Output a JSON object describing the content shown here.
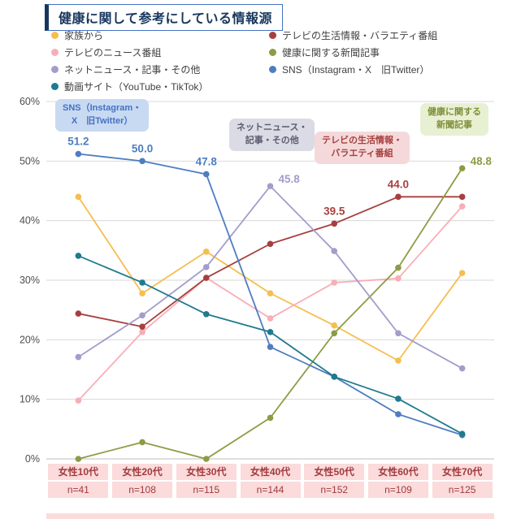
{
  "title": "健康に関して参考にしている情報源",
  "colors": {
    "title_text": "#17375E",
    "title_border": "#4472C4",
    "category_label_bg": "#FBDBDB",
    "category_label_text": "#A23B3E",
    "gridline": "#D9D9D9"
  },
  "legend": {
    "left": [
      "家族から",
      "テレビのニュース番組",
      "ネットニュース・記事・その他",
      "動画サイト（YouTube・TikTok）"
    ],
    "right": [
      "テレビの生活情報・バラエティ番組",
      "健康に関する新聞記事",
      "SNS（Instagram・X　旧Twitter）"
    ]
  },
  "chart_data": {
    "type": "line",
    "title": "健康に関して参考にしている情報源",
    "categories": [
      "女性10代",
      "女性20代",
      "女性30代",
      "女性40代",
      "女性50代",
      "女性60代",
      "女性70代"
    ],
    "sample_sizes": [
      "n=41",
      "n=108",
      "n=115",
      "n=144",
      "n=152",
      "n=109",
      "n=125"
    ],
    "ylim": [
      0,
      60
    ],
    "ytick_step": 10,
    "ytick_labels": [
      "0%",
      "10%",
      "20%",
      "30%",
      "40%",
      "50%",
      "60%"
    ],
    "grid": true,
    "legend_position": "top",
    "series": [
      {
        "name": "家族から",
        "color": "#F5BE4E",
        "values": [
          44.0,
          27.8,
          34.8,
          27.8,
          22.4,
          16.5,
          31.2
        ]
      },
      {
        "name": "テレビのニュース番組",
        "color": "#F8AEB6",
        "values": [
          9.8,
          21.3,
          30.4,
          23.6,
          29.6,
          30.3,
          42.4
        ]
      },
      {
        "name": "テレビの生活情報・バラエティ番組",
        "color": "#A6403E",
        "values": [
          24.4,
          22.2,
          30.4,
          36.1,
          39.5,
          44.0,
          44.0
        ]
      },
      {
        "name": "健康に関する新聞記事",
        "color": "#8D9C44",
        "values": [
          0.0,
          2.8,
          0.0,
          6.9,
          21.1,
          32.1,
          48.8
        ]
      },
      {
        "name": "ネットニュース・記事・その他",
        "color": "#A29DCB",
        "values": [
          17.1,
          24.1,
          32.2,
          45.8,
          34.9,
          21.1,
          15.2
        ]
      },
      {
        "name": "SNS（Instagram・X　旧Twitter）",
        "color": "#4E7DC0",
        "values": [
          51.2,
          50.0,
          47.8,
          18.8,
          13.8,
          7.5,
          4.0
        ]
      },
      {
        "name": "動画サイト（YouTube・TikTok）",
        "color": "#1F7A8E",
        "values": [
          34.1,
          29.6,
          24.3,
          21.3,
          13.8,
          10.1,
          4.2
        ]
      }
    ],
    "point_labels": [
      {
        "series": "SNS（Instagram・X　旧Twitter）",
        "index": 0,
        "text": "51.2",
        "position": "above"
      },
      {
        "series": "SNS（Instagram・X　旧Twitter）",
        "index": 1,
        "text": "50.0",
        "position": "above"
      },
      {
        "series": "SNS（Instagram・X　旧Twitter）",
        "index": 2,
        "text": "47.8",
        "position": "above"
      },
      {
        "series": "ネットニュース・記事・その他",
        "index": 3,
        "text": "45.8",
        "position": "right"
      },
      {
        "series": "テレビの生活情報・バラエティ番組",
        "index": 4,
        "text": "39.5",
        "position": "above"
      },
      {
        "series": "テレビの生活情報・バラエティ番組",
        "index": 5,
        "text": "44.0",
        "position": "above"
      },
      {
        "series": "健康に関する新聞記事",
        "index": 6,
        "text": "48.8",
        "position": "right"
      }
    ]
  },
  "annotations": [
    {
      "id": "sns",
      "lines": [
        "SNS（Instagram・",
        "X　旧Twitter）"
      ],
      "bg": "#C8D9F2",
      "color": "#4472C4"
    },
    {
      "id": "netnews",
      "lines": [
        "ネットニュース・",
        "記事・その他"
      ],
      "bg": "#DBDBE6",
      "color": "#5B5B6E"
    },
    {
      "id": "tv-variety",
      "lines": [
        "テレビの生活情報・",
        "バラエティ番組"
      ],
      "bg": "#F5D9DA",
      "color": "#A6403E"
    },
    {
      "id": "newspaper",
      "lines": [
        "健康に関する",
        "新聞記事"
      ],
      "bg": "#E8F0D4",
      "color": "#7F9038"
    }
  ]
}
